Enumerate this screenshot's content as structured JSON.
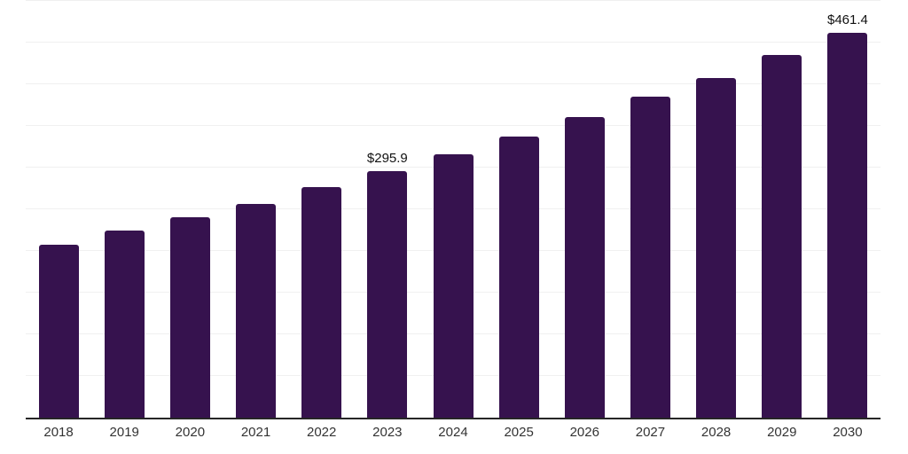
{
  "chart_data": {
    "type": "bar",
    "title": "",
    "xlabel": "",
    "ylabel": "",
    "categories": [
      "2018",
      "2019",
      "2020",
      "2021",
      "2022",
      "2023",
      "2024",
      "2025",
      "2026",
      "2027",
      "2028",
      "2029",
      "2030"
    ],
    "values": [
      207.5,
      224.6,
      240.3,
      256.8,
      277.1,
      295.9,
      316.1,
      337.4,
      361.1,
      385.3,
      407.6,
      435.6,
      461.4
    ],
    "data_labels": [
      "",
      "",
      "",
      "",
      "",
      "$295.9",
      "",
      "",
      "",
      "",
      "",
      "",
      "$461.4"
    ],
    "ylim": [
      0,
      500
    ],
    "gridline_step": 50,
    "grid": true,
    "legend": "none",
    "y_axis_tick_labels_visible": false,
    "colors": {
      "bar": "#36124E",
      "axis_line": "#262626",
      "gridline": "#F0F0F0",
      "tick_label": "#333333",
      "value_label": "#111111",
      "background": "#FFFFFF"
    }
  }
}
